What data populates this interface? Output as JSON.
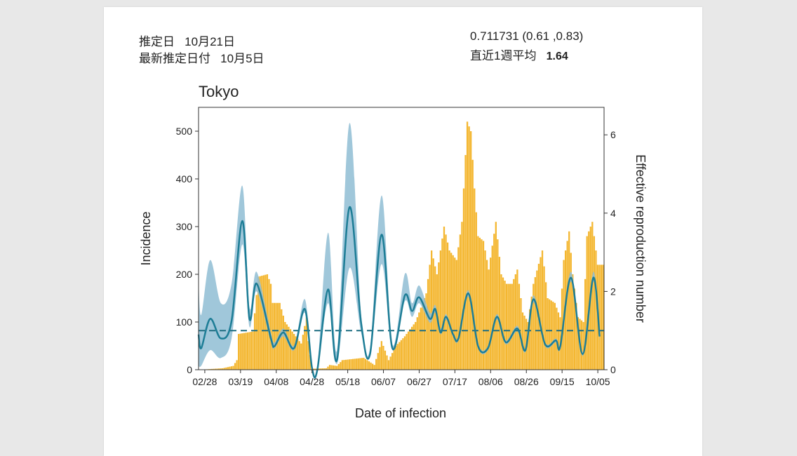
{
  "header": {
    "estimate_date_label": "推定日",
    "estimate_date_value": "10月21日",
    "latest_date_label": "最新推定日付",
    "latest_date_value": "10月5日",
    "rt_estimate": "0.711731 (0.61 ,0.83)",
    "weekly_avg_label": "直近1週平均",
    "weekly_avg_value": "1.64"
  },
  "chart_data": {
    "type": "bar+line",
    "title": "Tokyo",
    "xlabel": "Date of infection",
    "ylabel": "Incidence",
    "y2label": "Effective reproduction number",
    "x_unit": "days since 02/28",
    "xlim": [
      -3.5,
      223.5
    ],
    "ylim": [
      0,
      550
    ],
    "y2lim": [
      0,
      6.6
    ],
    "x_ticks": [
      {
        "day": 0,
        "label": "02/28"
      },
      {
        "day": 20,
        "label": "03/19"
      },
      {
        "day": 40,
        "label": "04/08"
      },
      {
        "day": 60,
        "label": "04/28"
      },
      {
        "day": 80,
        "label": "05/18"
      },
      {
        "day": 100,
        "label": "06/07"
      },
      {
        "day": 120,
        "label": "06/27"
      },
      {
        "day": 140,
        "label": "07/17"
      },
      {
        "day": 160,
        "label": "08/06"
      },
      {
        "day": 180,
        "label": "08/26"
      },
      {
        "day": 200,
        "label": "09/15"
      },
      {
        "day": 220,
        "label": "10/05"
      }
    ],
    "y_ticks": [
      "0",
      "100",
      "200",
      "300",
      "400",
      "500"
    ],
    "y2_ticks": [
      "0",
      "2",
      "4",
      "6"
    ],
    "reference_line_rt": 1,
    "colors": {
      "bars": "#f4b731",
      "band": "#8fbdd3",
      "line": "#1d7d96",
      "dashed": "#1f6f82"
    },
    "incidence_points": [
      [
        -3,
        0
      ],
      [
        10,
        3
      ],
      [
        16,
        8
      ],
      [
        18,
        20
      ],
      [
        19,
        75
      ],
      [
        27,
        80
      ],
      [
        30,
        195
      ],
      [
        35,
        200
      ],
      [
        37,
        180
      ],
      [
        38,
        140
      ],
      [
        42,
        140
      ],
      [
        45,
        100
      ],
      [
        49,
        80
      ],
      [
        54,
        55
      ],
      [
        57,
        110
      ],
      [
        58,
        60
      ],
      [
        60,
        2
      ],
      [
        68,
        3
      ],
      [
        70,
        10
      ],
      [
        74,
        8
      ],
      [
        77,
        20
      ],
      [
        89,
        25
      ],
      [
        95,
        10
      ],
      [
        99,
        60
      ],
      [
        103,
        20
      ],
      [
        107,
        50
      ],
      [
        112,
        70
      ],
      [
        118,
        100
      ],
      [
        121,
        130
      ],
      [
        124,
        160
      ],
      [
        127,
        250
      ],
      [
        130,
        200
      ],
      [
        134,
        300
      ],
      [
        137,
        250
      ],
      [
        141,
        230
      ],
      [
        144,
        310
      ],
      [
        147,
        520
      ],
      [
        149,
        500
      ],
      [
        151,
        380
      ],
      [
        153,
        280
      ],
      [
        156,
        270
      ],
      [
        159,
        210
      ],
      [
        163,
        310
      ],
      [
        166,
        200
      ],
      [
        169,
        180
      ],
      [
        172,
        180
      ],
      [
        175,
        210
      ],
      [
        178,
        120
      ],
      [
        181,
        100
      ],
      [
        184,
        180
      ],
      [
        189,
        250
      ],
      [
        192,
        150
      ],
      [
        196,
        140
      ],
      [
        199,
        110
      ],
      [
        201,
        230
      ],
      [
        204,
        290
      ],
      [
        206,
        200
      ],
      [
        209,
        110
      ],
      [
        212,
        100
      ],
      [
        214,
        280
      ],
      [
        217,
        310
      ],
      [
        220,
        220
      ],
      [
        223,
        220
      ]
    ],
    "rt_points": [
      [
        -3.5,
        0.9,
        0.1,
        2.3
      ],
      [
        -2,
        0.55,
        0.1,
        1.4
      ],
      [
        3,
        1.3,
        0.5,
        2.8
      ],
      [
        9,
        0.8,
        0.3,
        1.7
      ],
      [
        15,
        1.25,
        0.8,
        2.2
      ],
      [
        21,
        3.8,
        3.2,
        4.7
      ],
      [
        25,
        1.3,
        1.1,
        1.6
      ],
      [
        29,
        2.2,
        2.0,
        2.5
      ],
      [
        37,
        0.8,
        0.7,
        0.95
      ],
      [
        39,
        0.6,
        0.55,
        0.7
      ],
      [
        44,
        0.95,
        0.85,
        1.05
      ],
      [
        50,
        0.55,
        0.5,
        0.62
      ],
      [
        56,
        1.55,
        1.45,
        1.8
      ],
      [
        60,
        0.05,
        0,
        0.1
      ],
      [
        63,
        0,
        0,
        0.05
      ],
      [
        69,
        2.05,
        1.7,
        3.5
      ],
      [
        74,
        0.25,
        0.15,
        0.5
      ],
      [
        81,
        4.15,
        2.6,
        6.3
      ],
      [
        87.5,
        1.2,
        0.95,
        1.4
      ],
      [
        92.5,
        0.4,
        0.35,
        0.55
      ],
      [
        99,
        3.45,
        2.7,
        4.45
      ],
      [
        105,
        0.55,
        0.5,
        0.65
      ],
      [
        112,
        1.9,
        1.75,
        2.45
      ],
      [
        116,
        1.5,
        1.35,
        1.7
      ],
      [
        120,
        1.85,
        1.7,
        2.15
      ],
      [
        126,
        1.3,
        1.2,
        1.45
      ],
      [
        129,
        1.55,
        1.45,
        1.65
      ],
      [
        132,
        0.95,
        0.9,
        1.05
      ],
      [
        135,
        1.35,
        1.28,
        1.42
      ],
      [
        139,
        0.9,
        0.85,
        0.95
      ],
      [
        142,
        0.8,
        0.75,
        0.85
      ],
      [
        147.5,
        1.95,
        1.87,
        2.03
      ],
      [
        153,
        0.6,
        0.55,
        0.65
      ],
      [
        158.5,
        0.55,
        0.5,
        0.6
      ],
      [
        163.5,
        1.35,
        1.28,
        1.42
      ],
      [
        168.5,
        0.7,
        0.65,
        0.75
      ],
      [
        175,
        1.05,
        0.98,
        1.12
      ],
      [
        179.5,
        0.5,
        0.45,
        0.55
      ],
      [
        184,
        1.8,
        1.72,
        1.9
      ],
      [
        190.5,
        0.65,
        0.6,
        0.7
      ],
      [
        196.5,
        0.75,
        0.7,
        0.8
      ],
      [
        199,
        0.6,
        0.55,
        0.65
      ],
      [
        205,
        2.35,
        2.25,
        2.5
      ],
      [
        211.5,
        0.4,
        0.35,
        0.45
      ],
      [
        217.5,
        2.35,
        2.25,
        2.5
      ],
      [
        221,
        0.85,
        0.75,
        0.95
      ]
    ]
  }
}
